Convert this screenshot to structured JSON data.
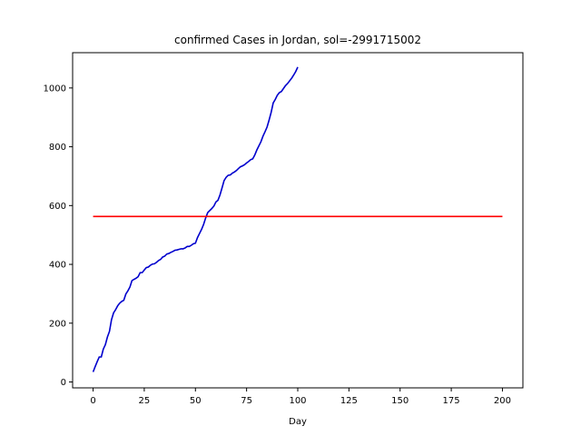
{
  "chart_data": {
    "type": "line",
    "title": "confirmed Cases in Jordan, sol=-2991715002",
    "xlabel": "Day",
    "ylabel": "",
    "xlim": [
      -10,
      210
    ],
    "ylim": [
      -20,
      1120
    ],
    "xticks": [
      0,
      25,
      50,
      75,
      100,
      125,
      150,
      175,
      200
    ],
    "yticks": [
      0,
      200,
      400,
      600,
      800,
      1000
    ],
    "grid": false,
    "series": [
      {
        "color": "#0000cd",
        "x": [
          0,
          1,
          2,
          3,
          4,
          5,
          6,
          7,
          8,
          9,
          10,
          11,
          12,
          13,
          14,
          15,
          16,
          17,
          18,
          19,
          20,
          21,
          22,
          23,
          24,
          25,
          26,
          27,
          28,
          29,
          30,
          31,
          32,
          33,
          34,
          35,
          36,
          37,
          38,
          39,
          40,
          41,
          42,
          43,
          44,
          45,
          46,
          47,
          48,
          49,
          50,
          51,
          52,
          53,
          54,
          55,
          56,
          57,
          58,
          59,
          60,
          61,
          62,
          63,
          64,
          65,
          66,
          67,
          68,
          69,
          70,
          71,
          72,
          73,
          74,
          75,
          76,
          77,
          78,
          79,
          80,
          81,
          82,
          83,
          84,
          85,
          86,
          87,
          88,
          89,
          90,
          91,
          92,
          93,
          94,
          95,
          96,
          97,
          98,
          99,
          100
        ],
        "y": [
          34,
          52,
          69,
          85,
          85,
          112,
          127,
          153,
          172,
          212,
          235,
          246,
          259,
          268,
          274,
          278,
          299,
          310,
          323,
          345,
          349,
          353,
          358,
          372,
          372,
          381,
          389,
          391,
          397,
          401,
          402,
          407,
          413,
          417,
          425,
          428,
          435,
          437,
          441,
          444,
          448,
          449,
          451,
          453,
          453,
          456,
          461,
          461,
          465,
          470,
          472,
          491,
          505,
          519,
          536,
          558,
          576,
          583,
          590,
          598,
          612,
          618,
          636,
          660,
          685,
          696,
          703,
          704,
          710,
          714,
          719,
          726,
          732,
          735,
          739,
          745,
          750,
          756,
          759,
          772,
          789,
          803,
          817,
          836,
          851,
          867,
          891,
          917,
          949,
          961,
          975,
          984,
          988,
          998,
          1008,
          1015,
          1024,
          1033,
          1044,
          1056,
          1071
        ]
      },
      {
        "color": "#ff0000",
        "x": [
          0,
          200
        ],
        "y": [
          563,
          563
        ]
      }
    ]
  }
}
